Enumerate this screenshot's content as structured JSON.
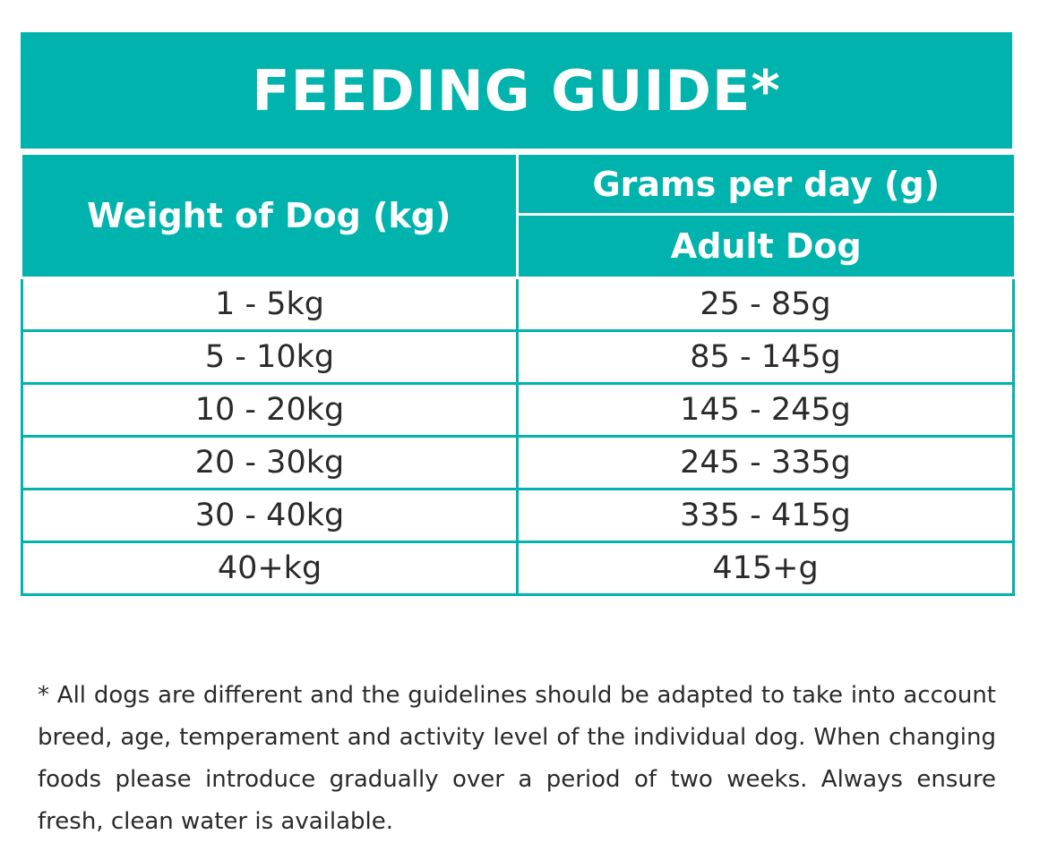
{
  "title": "FEEDING GUIDE*",
  "table": {
    "header_weight": "Weight of Dog (kg)",
    "header_grams": "Grams per day (g)",
    "header_adult": "Adult Dog",
    "rows": [
      {
        "weight": "1 - 5kg",
        "grams": "25 - 85g"
      },
      {
        "weight": "5 - 10kg",
        "grams": "85 - 145g"
      },
      {
        "weight": "10 - 20kg",
        "grams": "145 - 245g"
      },
      {
        "weight": "20 - 30kg",
        "grams": "245 - 335g"
      },
      {
        "weight": "30 - 40kg",
        "grams": "335 - 415g"
      },
      {
        "weight": "40+kg",
        "grams": "415+g"
      }
    ]
  },
  "footnote": "* All dogs are different and the guidelines should be adapted to take into account breed, age, temperament and activity level of the individual dog. When changing foods please introduce gradually over a period of two weeks. Always ensure fresh, clean water is available.",
  "colors": {
    "accent": "#00b3ad",
    "text": "#2a2a2a"
  }
}
